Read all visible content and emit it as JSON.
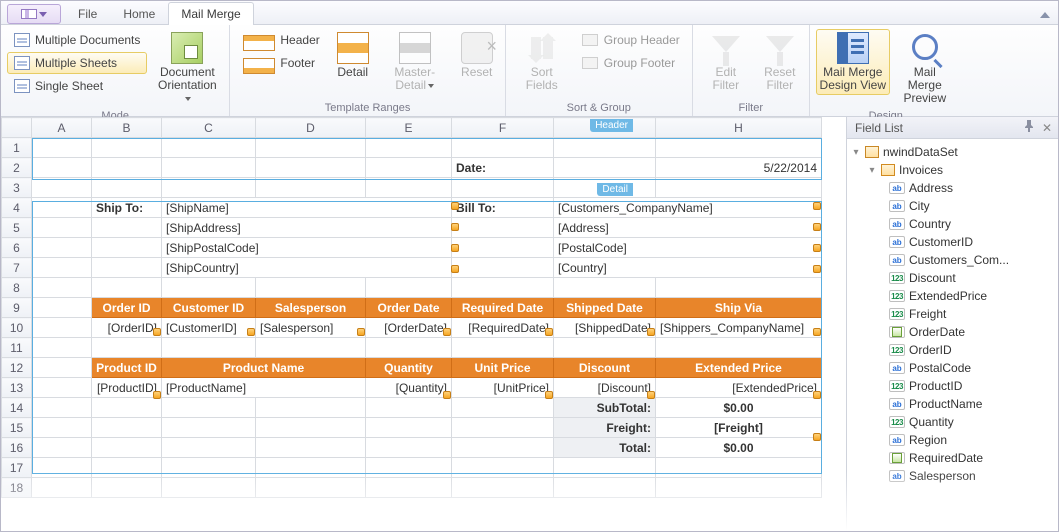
{
  "tabs": {
    "file": "File",
    "home": "Home",
    "mailmerge": "Mail Merge"
  },
  "ribbon": {
    "mode": {
      "multiDocs": "Multiple Documents",
      "multiSheets": "Multiple Sheets",
      "singleSheet": "Single Sheet",
      "orientation": "Document Orientation",
      "label": "Mode"
    },
    "ranges": {
      "header": "Header",
      "footer": "Footer",
      "detail": "Detail",
      "masterDetail": "Master-Detail",
      "reset": "Reset",
      "label": "Template Ranges"
    },
    "sort": {
      "sortFields": "Sort Fields",
      "groupHeader": "Group Header",
      "groupFooter": "Group Footer",
      "label": "Sort & Group"
    },
    "filter": {
      "edit": "Edit Filter",
      "reset": "Reset Filter",
      "label": "Filter"
    },
    "design": {
      "designView": "Mail Merge Design View",
      "preview": "Mail Merge Preview",
      "label": "Design"
    }
  },
  "fieldList": {
    "title": "Field List",
    "root": "nwindDataSet",
    "table": "Invoices",
    "fields": [
      {
        "name": "Address",
        "t": "ab"
      },
      {
        "name": "City",
        "t": "ab"
      },
      {
        "name": "Country",
        "t": "ab"
      },
      {
        "name": "CustomerID",
        "t": "ab"
      },
      {
        "name": "Customers_Com...",
        "t": "ab"
      },
      {
        "name": "Discount",
        "t": "num"
      },
      {
        "name": "ExtendedPrice",
        "t": "num"
      },
      {
        "name": "Freight",
        "t": "num"
      },
      {
        "name": "OrderDate",
        "t": "date"
      },
      {
        "name": "OrderID",
        "t": "num"
      },
      {
        "name": "PostalCode",
        "t": "ab"
      },
      {
        "name": "ProductID",
        "t": "num"
      },
      {
        "name": "ProductName",
        "t": "ab"
      },
      {
        "name": "Quantity",
        "t": "num"
      },
      {
        "name": "Region",
        "t": "ab"
      },
      {
        "name": "RequiredDate",
        "t": "date"
      },
      {
        "name": "Salesperson",
        "t": "ab"
      }
    ]
  },
  "regions": {
    "header": "Header",
    "detail": "Detail"
  },
  "columns": [
    "A",
    "B",
    "C",
    "D",
    "E",
    "F",
    "G",
    "H"
  ],
  "cells": {
    "dateLabel": "Date:",
    "dateValue": "5/22/2014",
    "shipTo": "Ship To:",
    "billTo": "Bill To:",
    "shipName": "[ShipName]",
    "shipAddress": "[ShipAddress]",
    "shipPostal": "[ShipPostalCode]",
    "shipCountry": "[ShipCountry]",
    "custCompany": "[Customers_CompanyName]",
    "address": "[Address]",
    "postal": "[PostalCode]",
    "country": "[Country]",
    "h_orderID": "Order ID",
    "h_customerID": "Customer ID",
    "h_salesperson": "Salesperson",
    "h_orderDate": "Order Date",
    "h_requiredDate": "Required Date",
    "h_shippedDate": "Shipped Date",
    "h_shipVia": "Ship Via",
    "v_orderID": "[OrderID]",
    "v_customerID": "[CustomerID]",
    "v_salesperson": "[Salesperson]",
    "v_orderDate": "[OrderDate]",
    "v_requiredDate": "[RequiredDate]",
    "v_shippedDate": "[ShippedDate]",
    "v_shipVia": "[Shippers_CompanyName]",
    "h_productID": "Product ID",
    "h_productName": "Product Name",
    "h_qty": "Quantity",
    "h_unitPrice": "Unit Price",
    "h_discount": "Discount",
    "h_extPrice": "Extended Price",
    "v_productID": "[ProductID]",
    "v_productName": "[ProductName]",
    "v_qty": "[Quantity]",
    "v_unitPrice": "[UnitPrice]",
    "v_discount": "[Discount]",
    "v_extPrice": "[ExtendedPrice]",
    "subTotalLbl": "SubTotal:",
    "subTotalVal": "$0.00",
    "freightLbl": "Freight:",
    "freightVal": "[Freight]",
    "totalLbl": "Total:",
    "totalVal": "$0.00"
  },
  "colors": {
    "orange": "#e8852a",
    "regionBlue": "#6fb9e6",
    "gridBorder": "#d8dbe0"
  }
}
